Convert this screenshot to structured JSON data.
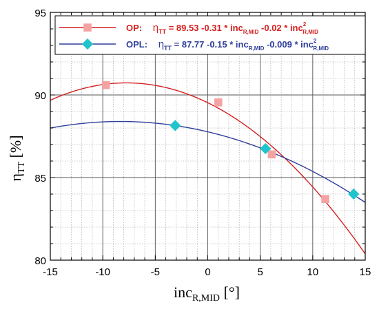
{
  "chart_data": {
    "type": "scatter",
    "xlabel": {
      "main": "inc",
      "sub": "R,MID",
      "unit": "[°]"
    },
    "ylabel": {
      "main": "η",
      "sub": "TT",
      "unit": "[%]"
    },
    "xlim": [
      -15,
      15
    ],
    "ylim": [
      80,
      95
    ],
    "xticks": [
      -15,
      -10,
      -5,
      0,
      5,
      10,
      15
    ],
    "yticks": [
      80,
      85,
      90,
      95
    ],
    "grid": true,
    "legend_position": "top",
    "series": [
      {
        "name": "OP:",
        "color": "#d42020",
        "marker_color": "#f4a3a3",
        "marker": "square",
        "points": [
          {
            "x": -9.7,
            "y": 90.6
          },
          {
            "x": 1.0,
            "y": 89.55
          },
          {
            "x": 6.1,
            "y": 86.4
          },
          {
            "x": 11.2,
            "y": 83.7
          }
        ],
        "fit": {
          "a": 89.53,
          "b": -0.31,
          "c": -0.02
        },
        "equation": {
          "lhs": "η",
          "lhs_sub": "TT",
          "eq": " = 89.53 -0.31 * inc",
          "sub1": "R,MID",
          "mid": " -0.02 * inc",
          "sup2": "2",
          "sub2": "R,MID"
        }
      },
      {
        "name": "OPL:",
        "color": "#2e3f9a",
        "marker_color": "#22c4cc",
        "marker": "diamond",
        "points": [
          {
            "x": -3.1,
            "y": 88.15
          },
          {
            "x": 5.5,
            "y": 86.75
          },
          {
            "x": 13.9,
            "y": 84.0
          }
        ],
        "fit": {
          "a": 87.77,
          "b": -0.15,
          "c": -0.009
        },
        "equation": {
          "lhs": "η",
          "lhs_sub": "TT",
          "eq": " = 87.77 -0.15 * inc",
          "sub1": "R,MID",
          "mid": " -0.009 * inc",
          "sup2": "2",
          "sub2": "R,MID"
        }
      }
    ]
  }
}
